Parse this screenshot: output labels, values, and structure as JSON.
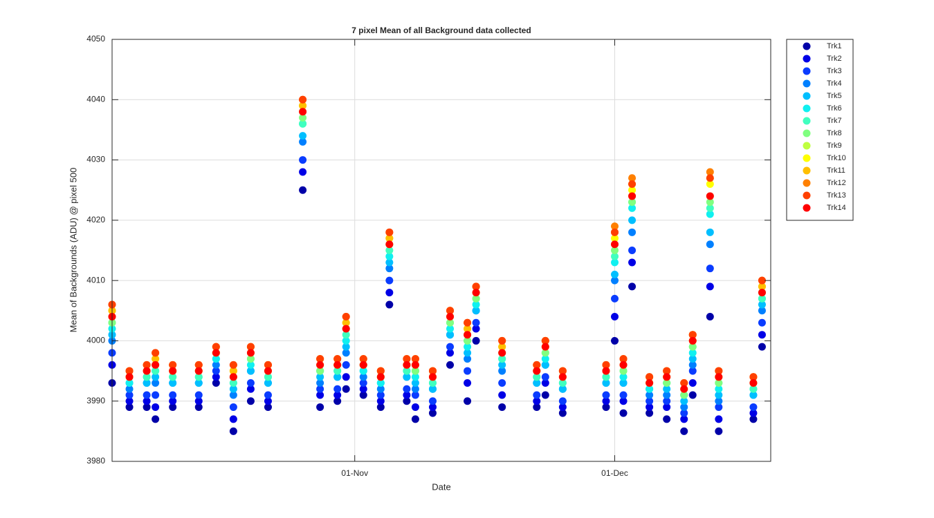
{
  "chart_data": {
    "type": "scatter",
    "title": "7 pixel Mean of all Background data collected",
    "x_label": "Date",
    "y_label": "Mean of Backgrounds (ADU) @ pixel 500",
    "x": [
      "04-Oct",
      "06-Oct",
      "08-Oct",
      "09-Oct",
      "11-Oct",
      "14-Oct",
      "16-Oct",
      "18-Oct",
      "20-Oct",
      "22-Oct",
      "26-Oct",
      "28-Oct",
      "30-Oct",
      "31-Oct",
      "02-Nov",
      "04-Nov",
      "05-Nov",
      "07-Nov",
      "08-Nov",
      "10-Nov",
      "12-Nov",
      "14-Nov",
      "15-Nov",
      "18-Nov",
      "22-Nov",
      "23-Nov",
      "25-Nov",
      "30-Nov",
      "01-Dec",
      "02-Dec",
      "03-Dec",
      "05-Dec",
      "07-Dec",
      "09-Dec",
      "10-Dec",
      "12-Dec",
      "13-Dec",
      "17-Dec",
      "18-Dec"
    ],
    "xlim": [
      "04-Oct",
      "19-Dec"
    ],
    "xticks": [
      "01-Nov",
      "01-Dec"
    ],
    "ylim": [
      3980,
      4050
    ],
    "yticks": [
      3980,
      3990,
      4000,
      4010,
      4020,
      4030,
      4040,
      4050
    ],
    "grid": true,
    "legend": "outside-right",
    "series": [
      {
        "name": "Trk1",
        "color": "#0000a8",
        "values": [
          3993,
          3989,
          3989,
          3987,
          3989,
          3989,
          3993,
          3985,
          3990,
          3989,
          4025,
          3989,
          3990,
          3992,
          3991,
          3989,
          4006,
          3990,
          3987,
          3988,
          3996,
          3990,
          4000,
          3989,
          3989,
          3991,
          3988,
          3989,
          4000,
          3988,
          4009,
          3988,
          3987,
          3985,
          3991,
          4004,
          3985,
          3987,
          3999
        ]
      },
      {
        "name": "Trk2",
        "color": "#0000e6",
        "values": [
          3996,
          3990,
          3990,
          3989,
          3990,
          3990,
          3994,
          3987,
          3992,
          3990,
          4028,
          3991,
          3991,
          3994,
          3992,
          3990,
          4008,
          3991,
          3989,
          3989,
          3998,
          3993,
          4002,
          3991,
          3990,
          3993,
          3989,
          3990,
          4004,
          3990,
          4013,
          3989,
          3989,
          3987,
          3993,
          4009,
          3987,
          3988,
          4001
        ]
      },
      {
        "name": "Trk3",
        "color": "#0a3cff",
        "values": [
          3998,
          3991,
          3991,
          3991,
          3991,
          3991,
          3995,
          3989,
          3993,
          3991,
          4030,
          3992,
          3992,
          3996,
          3993,
          3991,
          4010,
          3992,
          3991,
          3990,
          3999,
          3995,
          4003,
          3993,
          3991,
          3994,
          3990,
          3991,
          4007,
          3991,
          4015,
          3990,
          3990,
          3988,
          3995,
          4012,
          3989,
          3989,
          4003
        ]
      },
      {
        "name": "Trk4",
        "color": "#0080ff",
        "values": [
          4000,
          3992,
          3993,
          3993,
          3993,
          3993,
          3996,
          3991,
          3995,
          3993,
          4033,
          3993,
          3994,
          3998,
          3994,
          3992,
          4012,
          3994,
          3992,
          3992,
          4001,
          3997,
          4005,
          3995,
          3993,
          3996,
          3992,
          3993,
          4010,
          3993,
          4018,
          3991,
          3991,
          3989,
          3996,
          4016,
          3990,
          3991,
          4005
        ]
      },
      {
        "name": "Trk5",
        "color": "#00bfff",
        "values": [
          4001,
          3993,
          3993,
          3994,
          3993,
          3993,
          3997,
          3992,
          3995,
          3993,
          4034,
          3994,
          3994,
          3999,
          3995,
          3993,
          4013,
          3994,
          3993,
          3992,
          4001,
          3998,
          4005,
          3996,
          3993,
          3996,
          3992,
          3993,
          4011,
          3993,
          4020,
          3992,
          3992,
          3990,
          3997,
          4018,
          3991,
          3991,
          4006
        ]
      },
      {
        "name": "Trk6",
        "color": "#10f0f0",
        "values": [
          4002,
          3993,
          3994,
          3995,
          3994,
          3994,
          3997,
          3993,
          3996,
          3994,
          4036,
          3995,
          3995,
          4000,
          3995,
          3993,
          4014,
          3995,
          3994,
          3993,
          4002,
          3999,
          4006,
          3997,
          3994,
          3997,
          3993,
          3994,
          4013,
          3994,
          4022,
          3992,
          3993,
          3991,
          3998,
          4021,
          3992,
          3992,
          4007
        ]
      },
      {
        "name": "Trk7",
        "color": "#40ffbf",
        "values": [
          4003,
          3994,
          3994,
          3995,
          3994,
          3994,
          3998,
          3993,
          3997,
          3994,
          4036,
          3995,
          3995,
          4001,
          3996,
          3994,
          4015,
          3995,
          3995,
          3993,
          4003,
          4000,
          4007,
          3997,
          3994,
          3998,
          3993,
          3994,
          4014,
          3995,
          4023,
          3993,
          3993,
          3991,
          3999,
          4022,
          3993,
          3992,
          4007
        ]
      },
      {
        "name": "Trk8",
        "color": "#80ff80",
        "values": [
          4003,
          3994,
          3995,
          3996,
          3995,
          3995,
          3998,
          3994,
          3997,
          3995,
          4037,
          3995,
          3996,
          4002,
          3996,
          3994,
          4016,
          3996,
          3995,
          3994,
          4003,
          4000,
          4007,
          3998,
          3995,
          3998,
          3994,
          3995,
          4015,
          3995,
          4023,
          3993,
          3993,
          3991,
          3999,
          4023,
          3993,
          3993,
          4008
        ]
      },
      {
        "name": "Trk9",
        "color": "#bfff40",
        "values": [
          4004,
          3994,
          3995,
          3996,
          3995,
          3995,
          3998,
          3994,
          3998,
          3995,
          4038,
          3996,
          3996,
          4002,
          3996,
          3994,
          4016,
          3996,
          3996,
          3994,
          4004,
          4001,
          4008,
          3998,
          3995,
          3999,
          3994,
          3995,
          4016,
          3996,
          4024,
          3993,
          3994,
          3992,
          4000,
          4024,
          3994,
          3993,
          4008
        ]
      },
      {
        "name": "Trk10",
        "color": "#ffff00",
        "values": [
          4005,
          3994,
          3995,
          3997,
          3995,
          3995,
          3998,
          3995,
          3998,
          3995,
          4039,
          3996,
          3996,
          4003,
          3996,
          3994,
          4017,
          3996,
          3996,
          3994,
          4004,
          4002,
          4008,
          3999,
          3995,
          3999,
          3994,
          3995,
          4017,
          3996,
          4025,
          3993,
          3994,
          3992,
          4000,
          4026,
          3994,
          3993,
          4009
        ]
      },
      {
        "name": "Trk11",
        "color": "#ffbf00",
        "values": [
          4005,
          3995,
          3996,
          3997,
          3996,
          3996,
          3999,
          3995,
          3999,
          3996,
          4039,
          3997,
          3997,
          4003,
          3997,
          3995,
          4017,
          3997,
          3997,
          3995,
          4005,
          4002,
          4009,
          3999,
          3996,
          4000,
          3995,
          3996,
          4018,
          3997,
          4026,
          3994,
          3995,
          3993,
          4001,
          4027,
          3995,
          3994,
          4009
        ]
      },
      {
        "name": "Trk12",
        "color": "#ff8000",
        "values": [
          4006,
          3995,
          3996,
          3998,
          3996,
          3996,
          3999,
          3996,
          3999,
          3996,
          4040,
          3997,
          3997,
          4004,
          3997,
          3995,
          4018,
          3997,
          3997,
          3995,
          4005,
          4003,
          4009,
          4000,
          3996,
          4000,
          3995,
          3996,
          4019,
          3997,
          4027,
          3994,
          3995,
          3993,
          4001,
          4028,
          3995,
          3994,
          4010
        ]
      },
      {
        "name": "Trk13",
        "color": "#ff4000",
        "values": [
          4006,
          3995,
          3996,
          3998,
          3996,
          3996,
          3999,
          3996,
          3999,
          3996,
          4040,
          3997,
          3997,
          4004,
          3997,
          3995,
          4018,
          3997,
          3997,
          3995,
          4005,
          4003,
          4009,
          4000,
          3996,
          4000,
          3995,
          3996,
          4018,
          3997,
          4026,
          3994,
          3995,
          3993,
          4001,
          4027,
          3995,
          3994,
          4010
        ]
      },
      {
        "name": "Trk14",
        "color": "#ff0000",
        "values": [
          4004,
          3994,
          3995,
          3996,
          3995,
          3995,
          3998,
          3994,
          3998,
          3995,
          4038,
          3996,
          3996,
          4002,
          3996,
          3994,
          4016,
          3996,
          3996,
          3994,
          4004,
          4001,
          4008,
          3998,
          3995,
          3999,
          3994,
          3995,
          4016,
          3996,
          4024,
          3993,
          3994,
          3992,
          4000,
          4024,
          3994,
          3993,
          4008
        ]
      }
    ]
  }
}
